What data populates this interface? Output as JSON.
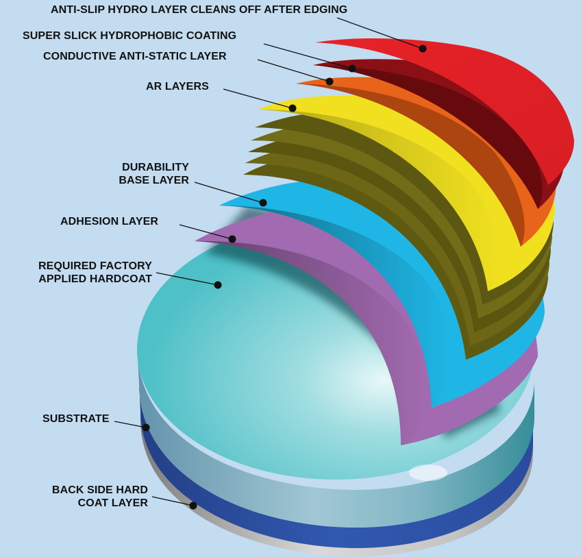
{
  "labels": {
    "anti_slip": "ANTI-SLIP HYDRO LAYER CLEANS OFF AFTER EDGING",
    "super_slick": "SUPER SLICK HYDROPHOBIC COATING",
    "conductive": "CONDUCTIVE ANTI-STATIC LAYER",
    "ar_layers": "AR LAYERS",
    "durability_line1": "DURABILITY",
    "durability_line2": "BASE LAYER",
    "adhesion": "ADHESION LAYER",
    "hardcoat_line1": "REQUIRED FACTORY",
    "hardcoat_line2": "APPLIED HARDCOAT",
    "substrate": "SUBSTRATE",
    "backside_line1": "BACK SIDE HARD",
    "backside_line2": "COAT LAYER"
  },
  "colors": {
    "background": "#c3dcef",
    "anti_slip": "#e02027",
    "super_slick": "#8a1016",
    "conductive": "#e8641a",
    "ar_layers": "#f0e020",
    "durability": "#1fb6e6",
    "adhesion": "#a26ab0",
    "hardcoat": "#4fc0c8",
    "substrate": "#2f55a8",
    "backside": "#c9c9c9"
  }
}
